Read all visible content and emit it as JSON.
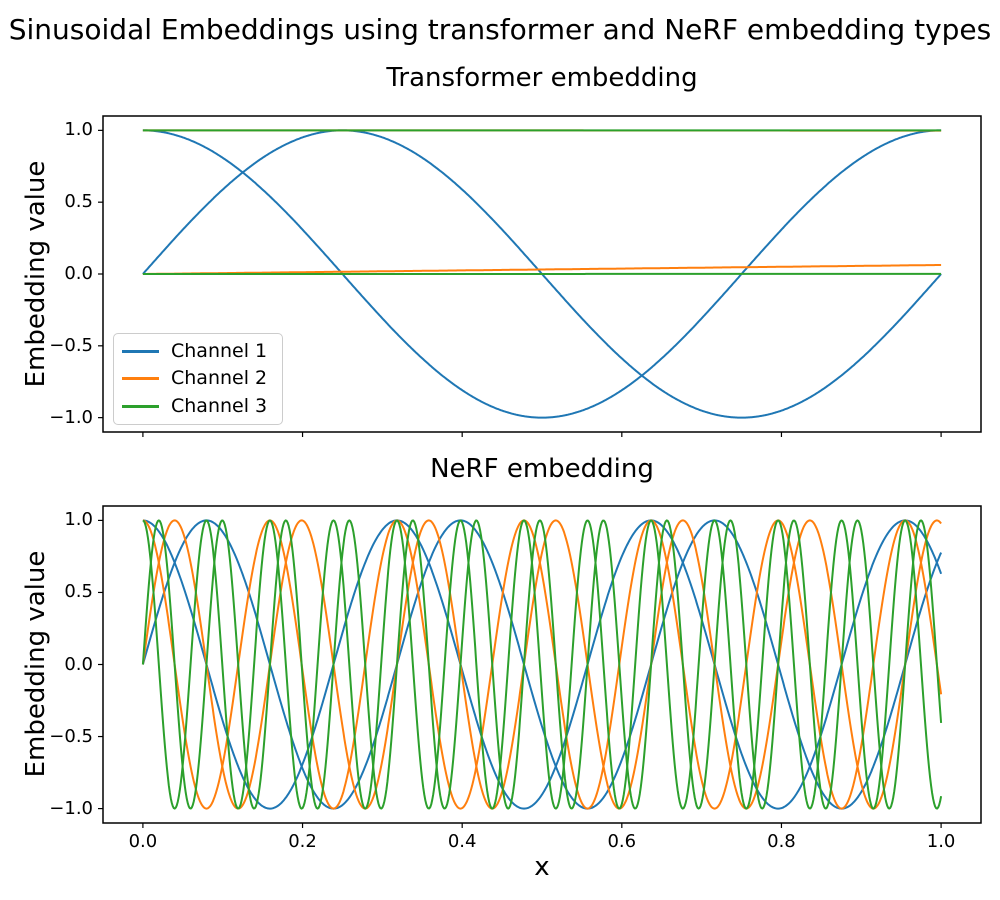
{
  "suptitle": "Sinusoidal Embeddings using transformer and NeRF embedding types",
  "chart_data": [
    {
      "type": "line",
      "title": "Transformer embedding",
      "xlabel": "",
      "ylabel": "Embedding value",
      "x_range": [
        0,
        1
      ],
      "xlim": [
        -0.05,
        1.05
      ],
      "ylim": [
        -1.1,
        1.1
      ],
      "grid": false,
      "xtick_values": [
        0.0,
        0.2,
        0.4,
        0.6,
        0.8,
        1.0
      ],
      "xtick_labels": [
        "",
        "",
        "",
        "",
        "",
        ""
      ],
      "ytick_values": [
        1.0,
        0.5,
        0.0,
        -0.5,
        -1.0
      ],
      "ytick_labels": [
        "1.0",
        "0.5",
        "0.0",
        "−0.5",
        "−1.0"
      ],
      "legend": {
        "position": "lower left",
        "entries": [
          {
            "label": "Channel 1",
            "color": "#1f77b4"
          },
          {
            "label": "Channel 2",
            "color": "#ff7f0e"
          },
          {
            "label": "Channel 3",
            "color": "#2ca02c"
          }
        ]
      },
      "series": [
        {
          "name": "Channel 1",
          "color": "#1f77b4",
          "curves": [
            {
              "fn": "sin",
              "omega": 6.283185
            },
            {
              "fn": "cos",
              "omega": 6.283185
            }
          ]
        },
        {
          "name": "Channel 2",
          "color": "#ff7f0e",
          "curves": [
            {
              "fn": "sin",
              "omega": 0.0628319
            },
            {
              "fn": "cos",
              "omega": 0.0628319
            }
          ]
        },
        {
          "name": "Channel 3",
          "color": "#2ca02c",
          "curves": [
            {
              "fn": "sin",
              "omega": 0.000628319
            },
            {
              "fn": "cos",
              "omega": 0.000628319
            }
          ]
        }
      ]
    },
    {
      "type": "line",
      "title": "NeRF embedding",
      "xlabel": "x",
      "ylabel": "Embedding value",
      "x_range": [
        0,
        1
      ],
      "xlim": [
        -0.05,
        1.05
      ],
      "ylim": [
        -1.1,
        1.1
      ],
      "grid": false,
      "xtick_values": [
        0.0,
        0.2,
        0.4,
        0.6,
        0.8,
        1.0
      ],
      "xtick_labels": [
        "0.0",
        "0.2",
        "0.4",
        "0.6",
        "0.8",
        "1.0"
      ],
      "ytick_values": [
        1.0,
        0.5,
        0.0,
        -0.5,
        -1.0
      ],
      "ytick_labels": [
        "1.0",
        "0.5",
        "0.0",
        "−0.5",
        "−1.0"
      ],
      "series": [
        {
          "name": "Channel 1",
          "color": "#1f77b4",
          "curves": [
            {
              "fn": "sin",
              "omega": 19.7392088
            },
            {
              "fn": "cos",
              "omega": 19.7392088
            }
          ]
        },
        {
          "name": "Channel 2",
          "color": "#ff7f0e",
          "curves": [
            {
              "fn": "sin",
              "omega": 39.4784176
            },
            {
              "fn": "cos",
              "omega": 39.4784176
            }
          ]
        },
        {
          "name": "Channel 3",
          "color": "#2ca02c",
          "curves": [
            {
              "fn": "sin",
              "omega": 78.9568352
            },
            {
              "fn": "cos",
              "omega": 78.9568352
            }
          ]
        }
      ]
    }
  ]
}
